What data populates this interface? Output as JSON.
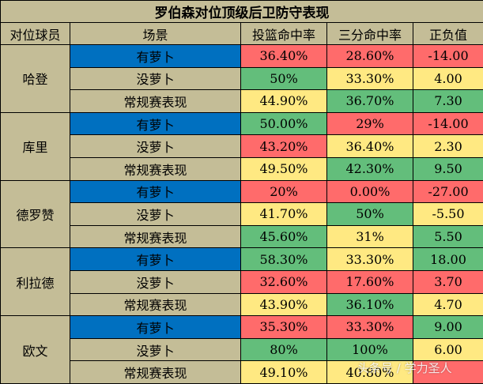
{
  "title": "罗伯森对位顶级后卫防守表现",
  "headers": [
    "对位球员",
    "场景",
    "投篮命中率",
    "三分命中率",
    "正负值"
  ],
  "players": [
    {
      "name": "哈登",
      "rows": [
        {
          "scene": "有萝卜",
          "fg": "36.40%",
          "tp": "28.60%",
          "pm": "-14.00",
          "colors": [
            "red",
            "red",
            "red"
          ]
        },
        {
          "scene": "没萝卜",
          "fg": "50%",
          "tp": "33.30%",
          "pm": "4.00",
          "colors": [
            "grn",
            "yel",
            "yel"
          ]
        },
        {
          "scene": "常规赛表现",
          "fg": "44.90%",
          "tp": "36.70%",
          "pm": "7.30",
          "colors": [
            "yel",
            "grn",
            "grn"
          ]
        }
      ]
    },
    {
      "name": "库里",
      "rows": [
        {
          "scene": "有萝卜",
          "fg": "50.00%",
          "tp": "29%",
          "pm": "-14.00",
          "colors": [
            "grn",
            "red",
            "red"
          ]
        },
        {
          "scene": "没萝卜",
          "fg": "43.20%",
          "tp": "36.40%",
          "pm": "2.30",
          "colors": [
            "red",
            "yel",
            "yel"
          ]
        },
        {
          "scene": "常规赛表现",
          "fg": "49.50%",
          "tp": "42.30%",
          "pm": "9.50",
          "colors": [
            "yel",
            "grn",
            "grn"
          ]
        }
      ]
    },
    {
      "name": "德罗赞",
      "rows": [
        {
          "scene": "有萝卜",
          "fg": "20%",
          "tp": "0.00%",
          "pm": "-27.00",
          "colors": [
            "red",
            "red",
            "red"
          ]
        },
        {
          "scene": "没萝卜",
          "fg": "41.70%",
          "tp": "50%",
          "pm": "-5.50",
          "colors": [
            "yel",
            "grn",
            "yel"
          ]
        },
        {
          "scene": "常规赛表现",
          "fg": "45.60%",
          "tp": "31%",
          "pm": "5.50",
          "colors": [
            "grn",
            "yel",
            "grn"
          ]
        }
      ]
    },
    {
      "name": "利拉德",
      "rows": [
        {
          "scene": "有萝卜",
          "fg": "58.30%",
          "tp": "33.30%",
          "pm": "18.00",
          "colors": [
            "grn",
            "yel",
            "grn"
          ]
        },
        {
          "scene": "没萝卜",
          "fg": "32.60%",
          "tp": "17.60%",
          "pm": "3.70",
          "colors": [
            "red",
            "red",
            "red"
          ]
        },
        {
          "scene": "常规赛表现",
          "fg": "43.90%",
          "tp": "36.10%",
          "pm": "4.70",
          "colors": [
            "yel",
            "grn",
            "yel"
          ]
        }
      ]
    },
    {
      "name": "欧文",
      "rows": [
        {
          "scene": "有萝卜",
          "fg": "35.30%",
          "tp": "33.30%",
          "pm": "9.00",
          "colors": [
            "red",
            "red",
            "grn"
          ]
        },
        {
          "scene": "没萝卜",
          "fg": "80%",
          "tp": "100%",
          "pm": "6.00",
          "colors": [
            "grn",
            "grn",
            "yel"
          ]
        },
        {
          "scene": "常规赛表现",
          "fg": "49.10%",
          "tp": "40.80%",
          "pm": "",
          "colors": [
            "yel",
            "yel",
            "red"
          ]
        }
      ]
    }
  ],
  "watermark": "头条号 / 学力圣人"
}
